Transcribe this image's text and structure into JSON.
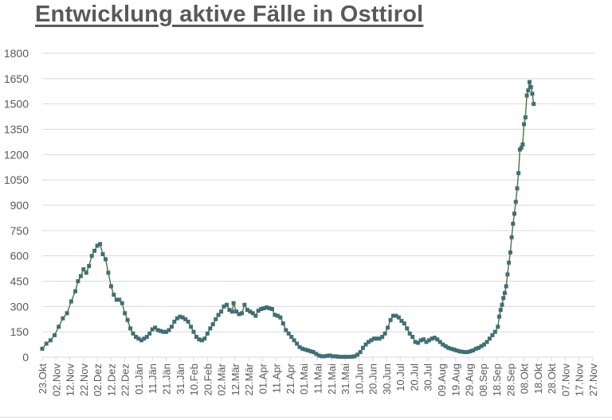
{
  "title": "Entwicklung aktive Fälle in Osttirol",
  "colors": {
    "line": "#5a7a3a",
    "marker": "#3f6f74",
    "grid": "#d9d9d9",
    "text": "#595959"
  },
  "chart_data": {
    "type": "line",
    "title": "Entwicklung aktive Fälle in Osttirol",
    "xlabel": "",
    "ylabel": "",
    "ylim": [
      0,
      1800
    ],
    "yticks": [
      0,
      150,
      300,
      450,
      600,
      750,
      900,
      1050,
      1200,
      1350,
      1500,
      1650,
      1800
    ],
    "grid": true,
    "legend": "none",
    "x_tick_labels": [
      "23.Okt",
      "02.Nov",
      "12.Nov",
      "22.Nov",
      "02.Dez",
      "12.Dez",
      "22.Dez",
      "01.Jän",
      "11.Jän",
      "21.Jän",
      "31.Jän",
      "10.Feb",
      "20.Feb",
      "02.Mär",
      "12.Mär",
      "22.Mär",
      "01.Apr",
      "11.Apr",
      "21.Apr",
      "01.Mai",
      "11.Mai",
      "21.Mai",
      "31.Mai",
      "10.Jun",
      "20.Jun",
      "30.Jun",
      "10.Jul",
      "20.Jul",
      "30.Jul",
      "09.Aug",
      "19.Aug",
      "29.Aug",
      "08.Sep",
      "18.Sep",
      "28.Sep",
      "08.Okt",
      "18.Okt",
      "28.Okt",
      "07.Nov",
      "17.Nov",
      "27.Nov"
    ],
    "x_units": "days since 23.Okt (tick every 10 days)",
    "series": [
      {
        "name": "aktive Fälle",
        "points": [
          [
            0,
            50
          ],
          [
            3,
            80
          ],
          [
            6,
            100
          ],
          [
            9,
            130
          ],
          [
            12,
            180
          ],
          [
            15,
            230
          ],
          [
            18,
            260
          ],
          [
            21,
            330
          ],
          [
            24,
            390
          ],
          [
            26,
            450
          ],
          [
            28,
            480
          ],
          [
            30,
            520
          ],
          [
            32,
            500
          ],
          [
            34,
            540
          ],
          [
            36,
            600
          ],
          [
            38,
            630
          ],
          [
            40,
            660
          ],
          [
            42,
            670
          ],
          [
            44,
            610
          ],
          [
            46,
            580
          ],
          [
            48,
            500
          ],
          [
            50,
            420
          ],
          [
            52,
            370
          ],
          [
            54,
            340
          ],
          [
            56,
            340
          ],
          [
            58,
            320
          ],
          [
            60,
            260
          ],
          [
            62,
            220
          ],
          [
            64,
            170
          ],
          [
            66,
            140
          ],
          [
            68,
            120
          ],
          [
            70,
            110
          ],
          [
            72,
            100
          ],
          [
            74,
            110
          ],
          [
            76,
            120
          ],
          [
            78,
            140
          ],
          [
            80,
            165
          ],
          [
            82,
            175
          ],
          [
            84,
            160
          ],
          [
            86,
            155
          ],
          [
            88,
            150
          ],
          [
            90,
            150
          ],
          [
            92,
            160
          ],
          [
            94,
            180
          ],
          [
            96,
            210
          ],
          [
            98,
            230
          ],
          [
            100,
            240
          ],
          [
            102,
            235
          ],
          [
            104,
            225
          ],
          [
            106,
            210
          ],
          [
            108,
            180
          ],
          [
            110,
            150
          ],
          [
            112,
            120
          ],
          [
            114,
            105
          ],
          [
            116,
            100
          ],
          [
            118,
            110
          ],
          [
            120,
            140
          ],
          [
            122,
            170
          ],
          [
            124,
            195
          ],
          [
            126,
            225
          ],
          [
            128,
            250
          ],
          [
            130,
            270
          ],
          [
            132,
            300
          ],
          [
            134,
            310
          ],
          [
            136,
            280
          ],
          [
            138,
            270
          ],
          [
            139,
            320
          ],
          [
            141,
            270
          ],
          [
            143,
            255
          ],
          [
            145,
            260
          ],
          [
            147,
            310
          ],
          [
            149,
            280
          ],
          [
            151,
            270
          ],
          [
            153,
            260
          ],
          [
            155,
            245
          ],
          [
            157,
            275
          ],
          [
            159,
            285
          ],
          [
            161,
            290
          ],
          [
            163,
            295
          ],
          [
            165,
            290
          ],
          [
            167,
            285
          ],
          [
            169,
            250
          ],
          [
            171,
            245
          ],
          [
            173,
            235
          ],
          [
            175,
            200
          ],
          [
            177,
            160
          ],
          [
            179,
            140
          ],
          [
            181,
            120
          ],
          [
            183,
            100
          ],
          [
            185,
            80
          ],
          [
            187,
            60
          ],
          [
            189,
            50
          ],
          [
            191,
            45
          ],
          [
            193,
            40
          ],
          [
            195,
            35
          ],
          [
            197,
            30
          ],
          [
            199,
            20
          ],
          [
            201,
            10
          ],
          [
            203,
            5
          ],
          [
            205,
            5
          ],
          [
            207,
            8
          ],
          [
            209,
            10
          ],
          [
            211,
            5
          ],
          [
            213,
            5
          ],
          [
            215,
            3
          ],
          [
            217,
            2
          ],
          [
            219,
            2
          ],
          [
            221,
            2
          ],
          [
            223,
            2
          ],
          [
            225,
            3
          ],
          [
            227,
            5
          ],
          [
            229,
            15
          ],
          [
            231,
            30
          ],
          [
            233,
            55
          ],
          [
            235,
            75
          ],
          [
            237,
            90
          ],
          [
            239,
            100
          ],
          [
            241,
            110
          ],
          [
            243,
            110
          ],
          [
            245,
            110
          ],
          [
            247,
            120
          ],
          [
            249,
            140
          ],
          [
            251,
            175
          ],
          [
            253,
            220
          ],
          [
            255,
            245
          ],
          [
            257,
            245
          ],
          [
            259,
            235
          ],
          [
            261,
            215
          ],
          [
            263,
            200
          ],
          [
            265,
            170
          ],
          [
            267,
            140
          ],
          [
            269,
            120
          ],
          [
            271,
            90
          ],
          [
            273,
            85
          ],
          [
            275,
            100
          ],
          [
            277,
            105
          ],
          [
            279,
            90
          ],
          [
            281,
            100
          ],
          [
            283,
            110
          ],
          [
            285,
            115
          ],
          [
            287,
            105
          ],
          [
            289,
            90
          ],
          [
            291,
            75
          ],
          [
            293,
            65
          ],
          [
            295,
            55
          ],
          [
            297,
            50
          ],
          [
            299,
            45
          ],
          [
            301,
            40
          ],
          [
            303,
            35
          ],
          [
            305,
            32
          ],
          [
            307,
            30
          ],
          [
            309,
            30
          ],
          [
            311,
            35
          ],
          [
            313,
            40
          ],
          [
            315,
            50
          ],
          [
            317,
            55
          ],
          [
            319,
            65
          ],
          [
            321,
            75
          ],
          [
            323,
            90
          ],
          [
            325,
            110
          ],
          [
            327,
            130
          ],
          [
            329,
            150
          ],
          [
            331,
            180
          ],
          [
            332,
            240
          ],
          [
            333,
            280
          ],
          [
            334,
            310
          ],
          [
            335,
            350
          ],
          [
            336,
            380
          ],
          [
            337,
            420
          ],
          [
            338,
            490
          ],
          [
            339,
            560
          ],
          [
            340,
            620
          ],
          [
            341,
            710
          ],
          [
            342,
            790
          ],
          [
            343,
            850
          ],
          [
            344,
            920
          ],
          [
            345,
            1000
          ],
          [
            346,
            1090
          ],
          [
            347,
            1230
          ],
          [
            348,
            1240
          ],
          [
            349,
            1260
          ],
          [
            350,
            1380
          ],
          [
            351,
            1420
          ],
          [
            352,
            1550
          ],
          [
            353,
            1580
          ],
          [
            354,
            1630
          ],
          [
            355,
            1600
          ],
          [
            356,
            1560
          ],
          [
            357,
            1500
          ]
        ]
      }
    ]
  }
}
